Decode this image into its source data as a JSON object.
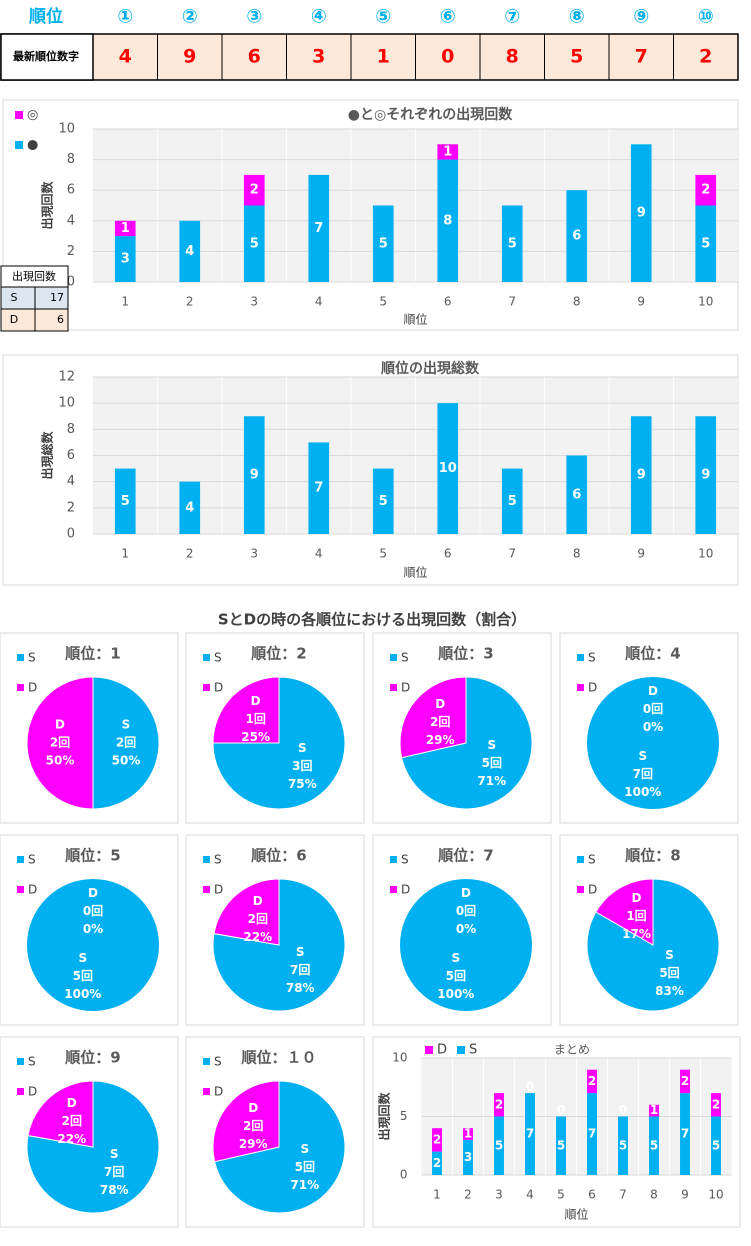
{
  "table": {
    "header": [
      "順位",
      "①",
      "②",
      "③",
      "④",
      "⑤",
      "⑥",
      "⑦",
      "⑧",
      "⑨",
      "⑩"
    ],
    "rows": [
      [
        "最新順位数字",
        4,
        9,
        6,
        3,
        1,
        0,
        8,
        5,
        7,
        2
      ]
    ]
  },
  "count_table": {
    "header": "出現回数",
    "rows": [
      [
        "S",
        17
      ],
      [
        "D",
        6
      ]
    ]
  },
  "pie_section_title": "SとDの時の各順位における出現回数（割合）",
  "chart_data": [
    {
      "type": "stacked_bar",
      "title": "●と◎それぞれの出現回数",
      "xlabel": "順位",
      "ylabel": "出現回数",
      "legend": "left",
      "categories": [
        "1",
        "2",
        "3",
        "4",
        "5",
        "6",
        "7",
        "8",
        "9",
        "10"
      ],
      "series": [
        {
          "name": "◎",
          "color": "#ff00ff",
          "values": [
            1,
            null,
            2,
            null,
            null,
            1,
            null,
            null,
            null,
            2
          ]
        },
        {
          "name": "●",
          "color": "#00b0f0",
          "values": [
            3,
            4,
            5,
            7,
            5,
            8,
            5,
            6,
            9,
            5
          ]
        }
      ],
      "ylim": [
        0,
        10
      ],
      "yticks": [
        0,
        2,
        4,
        6,
        8,
        10
      ],
      "grid": true
    },
    {
      "type": "bar",
      "title": "順位の出現総数",
      "xlabel": "順位",
      "ylabel": "出現総数",
      "categories": [
        "1",
        "2",
        "3",
        "4",
        "5",
        "6",
        "7",
        "8",
        "9",
        "10"
      ],
      "color": "#00b0f0",
      "values": [
        5,
        4,
        9,
        7,
        5,
        10,
        5,
        6,
        9,
        9
      ],
      "ylim": [
        0,
        12
      ],
      "yticks": [
        0,
        2,
        4,
        6,
        8,
        10,
        12
      ],
      "grid": true
    },
    {
      "type": "pie",
      "title": "順位：1",
      "labels": [
        "S",
        "D"
      ],
      "colors": [
        "#00b0f0",
        "#ff00ff"
      ],
      "values": [
        2,
        2
      ],
      "value_labels": [
        "2回",
        "2回"
      ],
      "percent_labels": [
        "50%",
        "50%"
      ]
    },
    {
      "type": "pie",
      "title": "順位：2",
      "labels": [
        "S",
        "D"
      ],
      "colors": [
        "#00b0f0",
        "#ff00ff"
      ],
      "values": [
        3,
        1
      ],
      "value_labels": [
        "3回",
        "1回"
      ],
      "percent_labels": [
        "75%",
        "25%"
      ]
    },
    {
      "type": "pie",
      "title": "順位：3",
      "labels": [
        "S",
        "D"
      ],
      "colors": [
        "#00b0f0",
        "#ff00ff"
      ],
      "values": [
        5,
        2
      ],
      "value_labels": [
        "5回",
        "2回"
      ],
      "percent_labels": [
        "71%",
        "29%"
      ]
    },
    {
      "type": "pie",
      "title": "順位：4",
      "labels": [
        "S",
        "D"
      ],
      "colors": [
        "#00b0f0",
        "#ff00ff"
      ],
      "values": [
        7,
        0
      ],
      "value_labels": [
        "7回",
        "0回"
      ],
      "percent_labels": [
        "100%",
        "0%"
      ]
    },
    {
      "type": "pie",
      "title": "順位：5",
      "labels": [
        "S",
        "D"
      ],
      "colors": [
        "#00b0f0",
        "#ff00ff"
      ],
      "values": [
        5,
        0
      ],
      "value_labels": [
        "5回",
        "0回"
      ],
      "percent_labels": [
        "100%",
        "0%"
      ]
    },
    {
      "type": "pie",
      "title": "順位：6",
      "labels": [
        "S",
        "D"
      ],
      "colors": [
        "#00b0f0",
        "#ff00ff"
      ],
      "values": [
        7,
        2
      ],
      "value_labels": [
        "7回",
        "2回"
      ],
      "percent_labels": [
        "78%",
        "22%"
      ]
    },
    {
      "type": "pie",
      "title": "順位：7",
      "labels": [
        "S",
        "D"
      ],
      "colors": [
        "#00b0f0",
        "#ff00ff"
      ],
      "values": [
        5,
        0
      ],
      "value_labels": [
        "5回",
        "0回"
      ],
      "percent_labels": [
        "100%",
        "0%"
      ]
    },
    {
      "type": "pie",
      "title": "順位：8",
      "labels": [
        "S",
        "D"
      ],
      "colors": [
        "#00b0f0",
        "#ff00ff"
      ],
      "values": [
        5,
        1
      ],
      "value_labels": [
        "5回",
        "1回"
      ],
      "percent_labels": [
        "83%",
        "17%"
      ]
    },
    {
      "type": "pie",
      "title": "順位：9",
      "labels": [
        "S",
        "D"
      ],
      "colors": [
        "#00b0f0",
        "#ff00ff"
      ],
      "values": [
        7,
        2
      ],
      "value_labels": [
        "7回",
        "2回"
      ],
      "percent_labels": [
        "78%",
        "22%"
      ]
    },
    {
      "type": "pie",
      "title": "順位：１０",
      "labels": [
        "S",
        "D"
      ],
      "colors": [
        "#00b0f0",
        "#ff00ff"
      ],
      "values": [
        5,
        2
      ],
      "value_labels": [
        "5回",
        "2回"
      ],
      "percent_labels": [
        "71%",
        "29%"
      ]
    },
    {
      "type": "stacked_bar",
      "title": "まとめ",
      "xlabel": "順位",
      "ylabel": "出現回数",
      "legend": "top",
      "categories": [
        "1",
        "2",
        "3",
        "4",
        "5",
        "6",
        "7",
        "8",
        "9",
        "10"
      ],
      "series": [
        {
          "name": "D",
          "color": "#ff00ff",
          "values": [
            2,
            1,
            2,
            0,
            0,
            2,
            0,
            1,
            2,
            2
          ]
        },
        {
          "name": "S",
          "color": "#00b0f0",
          "values": [
            2,
            3,
            5,
            7,
            5,
            7,
            5,
            5,
            7,
            5
          ]
        }
      ],
      "ylim": [
        0,
        10
      ],
      "yticks": [
        0,
        5,
        10
      ],
      "grid": true
    }
  ]
}
